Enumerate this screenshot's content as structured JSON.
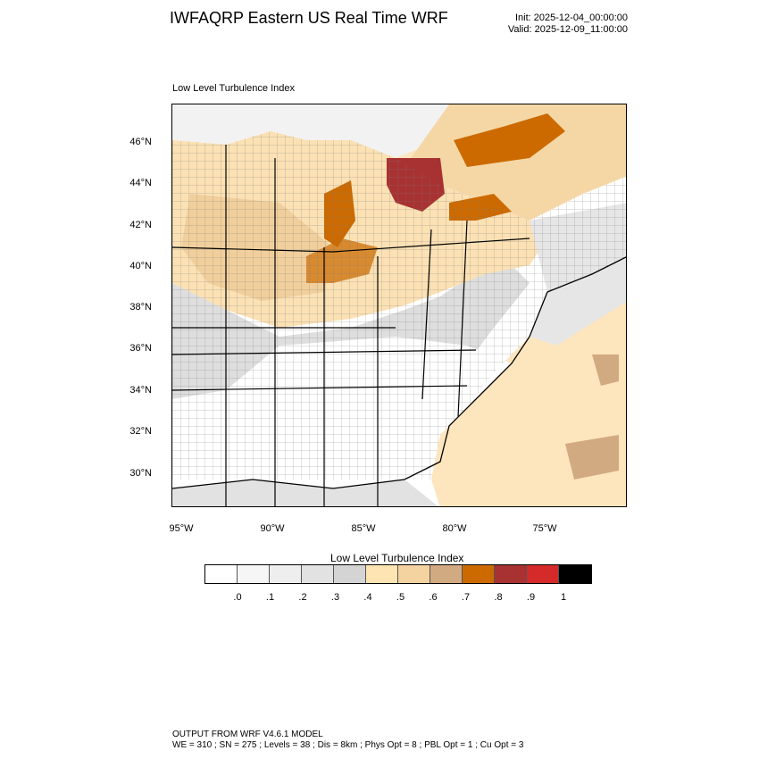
{
  "header": {
    "title": "IWFAQRP Eastern US Real Time WRF",
    "init": "Init: 2025-12-04_00:00:00",
    "valid": "Valid: 2025-12-09_11:00:00"
  },
  "map": {
    "field_label": "Low Level Turbulence Index",
    "lat_labels": [
      "46°N",
      "44°N",
      "42°N",
      "40°N",
      "38°N",
      "36°N",
      "34°N",
      "32°N",
      "30°N"
    ],
    "lon_labels": [
      "95°W",
      "90°W",
      "85°W",
      "80°W",
      "75°W"
    ]
  },
  "colorbar": {
    "title": "Low Level Turbulence Index",
    "colors": [
      "#ffffff",
      "#f6f6f6",
      "#eeeeee",
      "#e2e2e2",
      "#d4d4d4",
      "#ffe4b3",
      "#f5d3a0",
      "#d2aa82",
      "#cc6a00",
      "#a83232",
      "#d42a2a",
      "#000000"
    ],
    "ticks": [
      ".0",
      ".1",
      ".2",
      ".3",
      ".4",
      ".5",
      ".6",
      ".7",
      ".8",
      ".9",
      "1"
    ]
  },
  "footer": {
    "line1": "OUTPUT FROM WRF V4.6.1 MODEL",
    "line2": "WE = 310 ; SN = 275 ; Levels = 38 ; Dis = 8km ; Phys Opt = 8 ; PBL Opt = 1 ; Cu Opt = 3"
  }
}
